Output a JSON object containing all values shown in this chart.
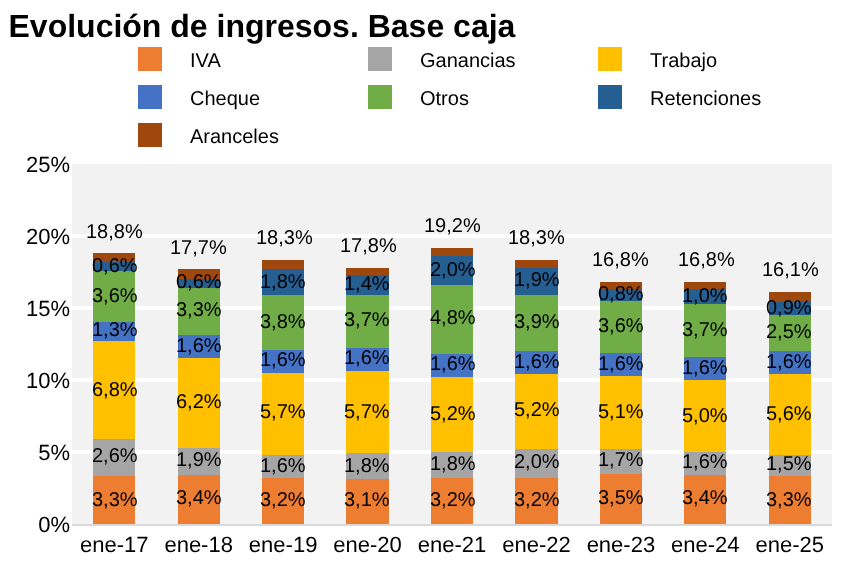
{
  "chart_data": {
    "type": "bar",
    "title": "Evolución de ingresos. Base caja",
    "stacked": true,
    "categories": [
      "ene-17",
      "ene-18",
      "ene-19",
      "ene-20",
      "ene-21",
      "ene-22",
      "ene-23",
      "ene-24",
      "ene-25"
    ],
    "series": [
      {
        "name": "IVA",
        "color": "#ed7d31",
        "values": [
          3.3,
          3.4,
          3.2,
          3.1,
          3.2,
          3.2,
          3.5,
          3.4,
          3.3
        ],
        "value_labels": [
          "3,3%",
          "3,4%",
          "3,2%",
          "3,1%",
          "3,2%",
          "3,2%",
          "3,5%",
          "3,4%",
          "3,3%"
        ]
      },
      {
        "name": "Ganancias",
        "color": "#a5a5a5",
        "values": [
          2.6,
          1.9,
          1.6,
          1.8,
          1.8,
          2.0,
          1.7,
          1.6,
          1.5
        ],
        "value_labels": [
          "2,6%",
          "1,9%",
          "1,6%",
          "1,8%",
          "1,8%",
          "2,0%",
          "1,7%",
          "1,6%",
          "1,5%"
        ]
      },
      {
        "name": "Trabajo",
        "color": "#ffc000",
        "values": [
          6.8,
          6.2,
          5.7,
          5.7,
          5.2,
          5.2,
          5.1,
          5.0,
          5.6
        ],
        "value_labels": [
          "6,8%",
          "6,2%",
          "5,7%",
          "5,7%",
          "5,2%",
          "5,2%",
          "5,1%",
          "5,0%",
          "5,6%"
        ]
      },
      {
        "name": "Cheque",
        "color": "#4472c4",
        "values": [
          1.3,
          1.6,
          1.6,
          1.6,
          1.6,
          1.6,
          1.6,
          1.6,
          1.6
        ],
        "value_labels": [
          "1,3%",
          "1,6%",
          "1,6%",
          "1,6%",
          "1,6%",
          "1,6%",
          "1,6%",
          "1,6%",
          "1,6%"
        ]
      },
      {
        "name": "Otros",
        "color": "#70ad47",
        "values": [
          3.6,
          3.3,
          3.8,
          3.7,
          4.8,
          3.9,
          3.6,
          3.7,
          2.5
        ],
        "value_labels": [
          "3,6%",
          "3,3%",
          "3,8%",
          "3,7%",
          "4,8%",
          "3,9%",
          "3,6%",
          "3,7%",
          "2,5%"
        ]
      },
      {
        "name": "Retenciones",
        "color": "#255e91",
        "values": [
          0.6,
          0.6,
          1.8,
          1.4,
          2.0,
          1.9,
          0.8,
          1.0,
          0.9
        ],
        "value_labels": [
          "0,6%",
          "0,6%",
          "1,8%",
          "1,4%",
          "2,0%",
          "1,9%",
          "0,8%",
          "1,0%",
          "0,9%"
        ]
      },
      {
        "name": "Aranceles",
        "color": "#9e480e",
        "values": [
          0.6,
          0.7,
          0.6,
          0.5,
          0.6,
          0.5,
          0.5,
          0.5,
          0.7
        ]
      }
    ],
    "totals": [
      "18,8%",
      "17,7%",
      "18,3%",
      "17,8%",
      "19,2%",
      "18,3%",
      "16,8%",
      "16,8%",
      "16,1%"
    ],
    "ylim": [
      0,
      25
    ],
    "yticks": [
      {
        "value": 0,
        "label": "0%"
      },
      {
        "value": 5,
        "label": "5%"
      },
      {
        "value": 10,
        "label": "10%"
      },
      {
        "value": 15,
        "label": "15%"
      },
      {
        "value": 20,
        "label": "20%"
      },
      {
        "value": 25,
        "label": "25%"
      }
    ],
    "grid": "y",
    "legend": "top left"
  }
}
